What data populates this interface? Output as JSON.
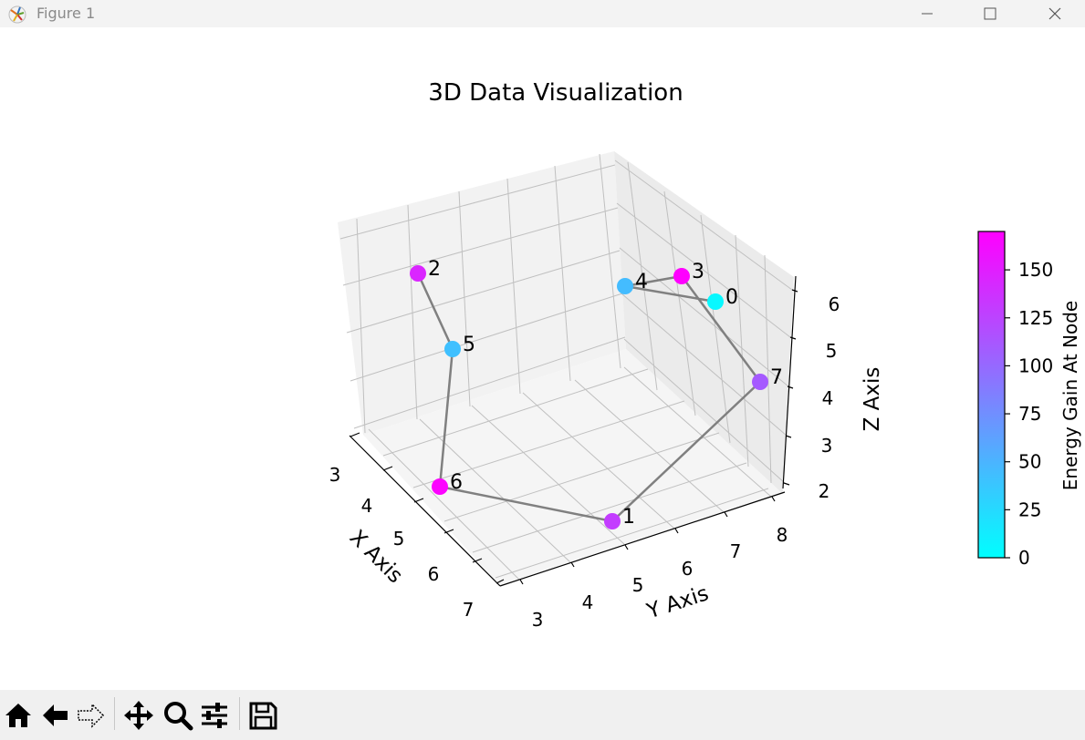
{
  "window": {
    "title": "Figure 1",
    "icon": "matplotlib-icon",
    "controls": [
      "minimize-icon",
      "maximize-icon",
      "close-icon"
    ]
  },
  "toolbar": {
    "buttons": [
      "home-icon",
      "back-arrow-icon",
      "forward-arrow-icon",
      "pan-move-icon",
      "zoom-magnifier-icon",
      "configure-subplots-icon",
      "save-icon"
    ]
  },
  "chart_data": {
    "type": "scatter",
    "projection": "3d",
    "title": "3D Data Visualization",
    "xlabel": "X Axis",
    "ylabel": "Y Axis",
    "zlabel": "Z Axis",
    "x_ticks": [
      "3",
      "4",
      "5",
      "6",
      "7"
    ],
    "y_ticks": [
      "3",
      "4",
      "5",
      "6",
      "7",
      "8"
    ],
    "z_ticks": [
      "2",
      "3",
      "4",
      "5",
      "6"
    ],
    "grid": true,
    "colormap": "cool",
    "colorbar": {
      "label": "Energy Gain At Node",
      "ticks": [
        "0",
        "25",
        "50",
        "75",
        "100",
        "125",
        "150"
      ],
      "range": [
        0,
        170
      ],
      "color_min": "#00ffff",
      "color_max": "#ff00ff"
    },
    "nodes": [
      {
        "label": "0",
        "energy": 5
      },
      {
        "label": "1",
        "energy": 130
      },
      {
        "label": "2",
        "energy": 145
      },
      {
        "label": "3",
        "energy": 170
      },
      {
        "label": "4",
        "energy": 45
      },
      {
        "label": "5",
        "energy": 42
      },
      {
        "label": "6",
        "energy": 168
      },
      {
        "label": "7",
        "energy": 110
      }
    ],
    "path_order": [
      "2",
      "5",
      "6",
      "1",
      "7",
      "3",
      "4",
      "0"
    ],
    "line_color": "#808080"
  }
}
